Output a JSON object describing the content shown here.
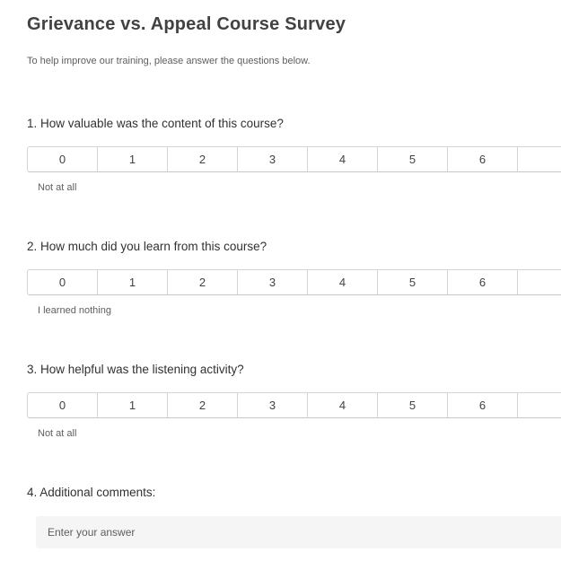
{
  "page": {
    "title": "Grievance vs. Appeal Course Survey",
    "subtitle": "To help improve our training, please answer the questions below."
  },
  "colors": {
    "title_text": "#424242",
    "question_text": "#323130",
    "muted_text": "#605e5c",
    "cell_border": "#d6d4d2",
    "input_background": "#f5f5f5",
    "page_background": "#ffffff"
  },
  "questions": [
    {
      "number": "1.",
      "text": "How valuable was the content of this course?",
      "type": "rating",
      "scale_values": [
        "0",
        "1",
        "2",
        "3",
        "4",
        "5",
        "6"
      ],
      "partial_cell_clipped": true,
      "low_label": "Not at all"
    },
    {
      "number": "2.",
      "text": "How much did you learn from this course?",
      "type": "rating",
      "scale_values": [
        "0",
        "1",
        "2",
        "3",
        "4",
        "5",
        "6"
      ],
      "partial_cell_clipped": true,
      "low_label": "I learned nothing"
    },
    {
      "number": "3.",
      "text": "How helpful was the listening activity?",
      "type": "rating",
      "scale_values": [
        "0",
        "1",
        "2",
        "3",
        "4",
        "5",
        "6"
      ],
      "partial_cell_clipped": true,
      "low_label": "Not at all"
    },
    {
      "number": "4.",
      "text": "Additional comments:",
      "type": "text",
      "placeholder": "Enter your answer"
    }
  ]
}
